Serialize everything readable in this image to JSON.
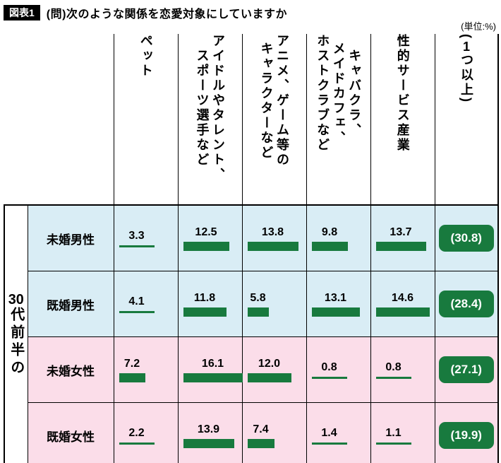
{
  "page": {
    "badge": "図表1",
    "title": "(問)次のような関係を恋愛対象にしていますか",
    "unit": "(単位:%)"
  },
  "chart_data": {
    "type": "bar",
    "title": "(問)次のような関係を恋愛対象にしていますか",
    "unit": "%",
    "group_label": "30代前半の",
    "columns": [
      "ペット",
      "アイドルやタレント、\nスポーツ選手など",
      "アニメ、ゲーム等の\nキャラクターなど",
      "キャバクラ、\nメイドカフェ、\nホストクラブなど",
      "性的サービス産業",
      "(1つ以上)"
    ],
    "rows": [
      {
        "label": "未婚男性",
        "tone": "blue",
        "values": [
          3.3,
          12.5,
          13.8,
          9.8,
          13.7
        ],
        "total": 30.8
      },
      {
        "label": "既婚男性",
        "tone": "blue",
        "values": [
          4.1,
          11.8,
          5.8,
          13.1,
          14.6
        ],
        "total": 28.4
      },
      {
        "label": "未婚女性",
        "tone": "pink",
        "values": [
          7.2,
          16.1,
          12.0,
          0.8,
          0.8
        ],
        "total": 27.1
      },
      {
        "label": "既婚女性",
        "tone": "pink",
        "values": [
          2.2,
          13.9,
          7.4,
          1.4,
          1.1
        ],
        "total": 19.9
      }
    ],
    "colors": {
      "bar_green": "#187a3e",
      "male_row_bg": "#d9edf5",
      "female_row_bg": "#fbdde9"
    },
    "legend": "none",
    "grid": "table-borders"
  }
}
